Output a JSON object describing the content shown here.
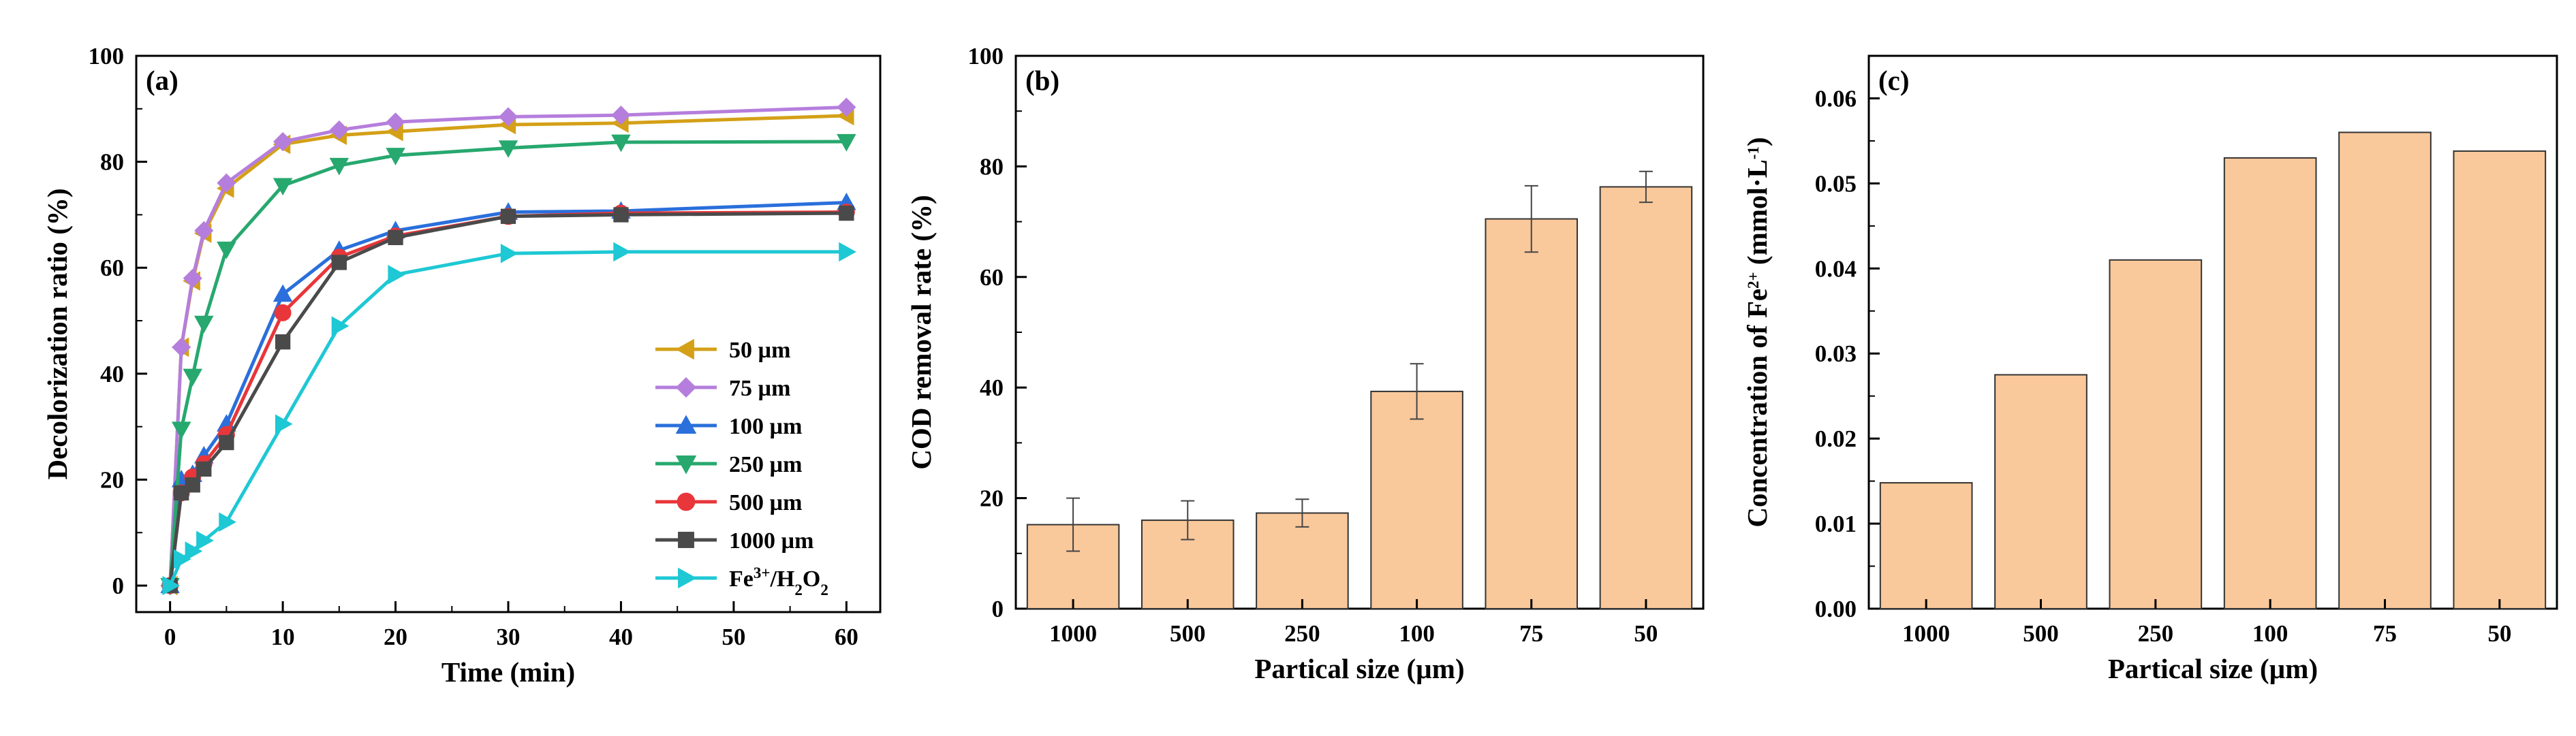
{
  "chart_data": [
    {
      "type": "line",
      "panel_label": "(a)",
      "xlabel": "Time (min)",
      "ylabel": "Decolorization ratio (%)",
      "xlim": [
        -3,
        63
      ],
      "ylim": [
        -5,
        100
      ],
      "xticks": [
        0,
        10,
        20,
        30,
        40,
        50,
        60
      ],
      "yticks": [
        0,
        20,
        40,
        60,
        80,
        100
      ],
      "legend_position": "bottom-right",
      "x": [
        0,
        1,
        2,
        3,
        5,
        10,
        15,
        20,
        30,
        40,
        60
      ],
      "series": [
        {
          "name": "50 µm",
          "color": "#d4a017",
          "marker": "triangle-left",
          "values": [
            0,
            45,
            57.5,
            66.5,
            75,
            83.3,
            85,
            85.7,
            87,
            87.3,
            88.7
          ]
        },
        {
          "name": "75 µm",
          "color": "#b57edc",
          "marker": "diamond",
          "values": [
            0,
            45,
            58,
            67,
            76,
            83.8,
            86,
            87.5,
            88.5,
            88.8,
            90.3
          ]
        },
        {
          "name": "100 µm",
          "color": "#2a6fdb",
          "marker": "triangle-up",
          "values": [
            0,
            20,
            21,
            24.5,
            30.5,
            55,
            63.3,
            67,
            70.5,
            70.7,
            72.3
          ]
        },
        {
          "name": "250 µm",
          "color": "#27a86e",
          "marker": "triangle-down",
          "values": [
            0,
            29.5,
            39.5,
            49.5,
            63.5,
            75.5,
            79.3,
            81.2,
            82.6,
            83.7,
            83.8
          ]
        },
        {
          "name": "500 µm",
          "color": "#e8363a",
          "marker": "circle",
          "values": [
            0,
            17.5,
            20.5,
            23,
            28.5,
            51.5,
            62,
            66,
            69.7,
            70.3,
            70.5
          ]
        },
        {
          "name": "1000 µm",
          "color": "#4a4a4a",
          "marker": "square",
          "values": [
            0,
            17.5,
            19,
            22,
            27,
            46,
            61,
            65.7,
            69.7,
            70,
            70.3
          ]
        },
        {
          "name": "Fe3+/H2O2",
          "name_parts": [
            "Fe",
            "3+",
            "/H",
            "2",
            "O",
            "2"
          ],
          "color": "#1ec8d4",
          "marker": "triangle-right",
          "values": [
            0,
            5,
            6.5,
            8.5,
            12,
            30.5,
            49,
            58.7,
            62.7,
            63,
            63
          ]
        }
      ]
    },
    {
      "type": "bar",
      "panel_label": "(b)",
      "xlabel": "Partical size (µm)",
      "ylabel": "COD removal rate (%)",
      "categories": [
        "1000",
        "500",
        "250",
        "100",
        "75",
        "50"
      ],
      "values": [
        15.2,
        16,
        17.3,
        39.3,
        70.5,
        76.3
      ],
      "errors": [
        4.8,
        3.5,
        2.5,
        5,
        6,
        2.8
      ],
      "ylim": [
        0,
        100
      ],
      "yticks": [
        0,
        20,
        40,
        60,
        80,
        100
      ],
      "bar_color": "#f9c89b"
    },
    {
      "type": "bar",
      "panel_label": "(c)",
      "xlabel": "Partical size (µm)",
      "ylabel": "Concentration of Fe2+ (mmol·L-1)",
      "ylabel_parts": [
        "Concentration of Fe",
        "2+",
        " (mmol·L",
        "-1",
        ")"
      ],
      "categories": [
        "1000",
        "500",
        "250",
        "100",
        "75",
        "50"
      ],
      "values": [
        0.0148,
        0.0275,
        0.041,
        0.053,
        0.056,
        0.0538
      ],
      "ylim": [
        0,
        0.065
      ],
      "yticks": [
        "0.00",
        "0.01",
        "0.02",
        "0.03",
        "0.04",
        "0.05",
        "0.06"
      ],
      "bar_color": "#f9c89b"
    }
  ]
}
